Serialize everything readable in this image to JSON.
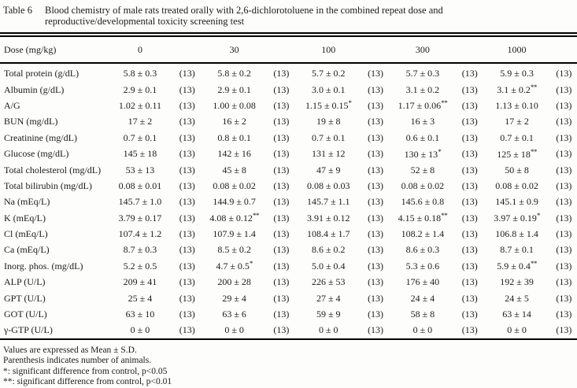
{
  "colors": {
    "text": "#1b1b1b",
    "rule": "#000000",
    "background": "#fdfdfc"
  },
  "title": {
    "label": "Table 6",
    "line1": "Blood chemistry of male rats treated orally with 2,6-dichlorotoluene in the combined repeat dose and",
    "line2": "reproductive/developmental toxicity screening test"
  },
  "table": {
    "dose_label": "Dose (mg/kg)",
    "doses": [
      "0",
      "30",
      "100",
      "300",
      "1000"
    ],
    "rows": [
      {
        "label": "Total protein (g/dL)",
        "cells": [
          {
            "mean": "5.8 ± 0.3",
            "mark": "",
            "n": "(13)"
          },
          {
            "mean": "5.8 ± 0.2",
            "mark": "",
            "n": "(13)"
          },
          {
            "mean": "5.7 ± 0.2",
            "mark": "",
            "n": "(13)"
          },
          {
            "mean": "5.7 ± 0.3",
            "mark": "",
            "n": "(13)"
          },
          {
            "mean": "5.9 ± 0.3",
            "mark": "",
            "n": "(13)"
          }
        ]
      },
      {
        "label": "Albumin (g/dL)",
        "cells": [
          {
            "mean": "2.9 ± 0.1",
            "mark": "",
            "n": "(13)"
          },
          {
            "mean": "2.9 ± 0.1",
            "mark": "",
            "n": "(13)"
          },
          {
            "mean": "3.0 ± 0.1",
            "mark": "",
            "n": "(13)"
          },
          {
            "mean": "3.1 ± 0.2",
            "mark": "",
            "n": "(13)"
          },
          {
            "mean": "3.1 ± 0.2",
            "mark": "**",
            "n": "(13)"
          }
        ]
      },
      {
        "label": "A/G",
        "cells": [
          {
            "mean": "1.02 ± 0.11",
            "mark": "",
            "n": "(13)"
          },
          {
            "mean": "1.00 ± 0.08",
            "mark": "",
            "n": "(13)"
          },
          {
            "mean": "1.15 ± 0.15",
            "mark": "*",
            "n": "(13)"
          },
          {
            "mean": "1.17 ± 0.06",
            "mark": "**",
            "n": "(13)"
          },
          {
            "mean": "1.13 ± 0.10",
            "mark": "",
            "n": "(13)"
          }
        ]
      },
      {
        "label": "BUN (mg/dL)",
        "cells": [
          {
            "mean": "17 ± 2",
            "mark": "",
            "n": "(13)"
          },
          {
            "mean": "16 ± 2",
            "mark": "",
            "n": "(13)"
          },
          {
            "mean": "19 ± 8",
            "mark": "",
            "n": "(13)"
          },
          {
            "mean": "16 ± 3",
            "mark": "",
            "n": "(13)"
          },
          {
            "mean": "17 ± 2",
            "mark": "",
            "n": "(13)"
          }
        ]
      },
      {
        "label": "Creatinine (mg/dL)",
        "cells": [
          {
            "mean": "0.7 ± 0.1",
            "mark": "",
            "n": "(13)"
          },
          {
            "mean": "0.8 ± 0.1",
            "mark": "",
            "n": "(13)"
          },
          {
            "mean": "0.7 ± 0.1",
            "mark": "",
            "n": "(13)"
          },
          {
            "mean": "0.6 ± 0.1",
            "mark": "",
            "n": "(13)"
          },
          {
            "mean": "0.7 ± 0.1",
            "mark": "",
            "n": "(13)"
          }
        ]
      },
      {
        "label": "Glucose (mg/dL)",
        "cells": [
          {
            "mean": "145 ± 18",
            "mark": "",
            "n": "(13)"
          },
          {
            "mean": "142 ± 16",
            "mark": "",
            "n": "(13)"
          },
          {
            "mean": "131 ± 12",
            "mark": "",
            "n": "(13)"
          },
          {
            "mean": "130 ± 13",
            "mark": "*",
            "n": "(13)"
          },
          {
            "mean": "125 ± 18",
            "mark": "**",
            "n": "(13)"
          }
        ]
      },
      {
        "label": "Total cholesterol (mg/dL)",
        "cells": [
          {
            "mean": "53 ± 13",
            "mark": "",
            "n": "(13)"
          },
          {
            "mean": "45 ± 8",
            "mark": "",
            "n": "(13)"
          },
          {
            "mean": "47 ± 9",
            "mark": "",
            "n": "(13)"
          },
          {
            "mean": "52 ± 8",
            "mark": "",
            "n": "(13)"
          },
          {
            "mean": "50 ± 8",
            "mark": "",
            "n": "(13)"
          }
        ]
      },
      {
        "label": "Total bilirubin (mg/dL)",
        "cells": [
          {
            "mean": "0.08 ± 0.01",
            "mark": "",
            "n": "(13)"
          },
          {
            "mean": "0.08 ± 0.02",
            "mark": "",
            "n": "(13)"
          },
          {
            "mean": "0.08 ± 0.03",
            "mark": "",
            "n": "(13)"
          },
          {
            "mean": "0.08 ± 0.02",
            "mark": "",
            "n": "(13)"
          },
          {
            "mean": "0.08 ± 0.02",
            "mark": "",
            "n": "(13)"
          }
        ]
      },
      {
        "label": "Na (mEq/L)",
        "cells": [
          {
            "mean": "145.7 ± 1.0",
            "mark": "",
            "n": "(13)"
          },
          {
            "mean": "144.9 ± 0.7",
            "mark": "",
            "n": "(13)"
          },
          {
            "mean": "145.7 ± 1.1",
            "mark": "",
            "n": "(13)"
          },
          {
            "mean": "145.6 ± 0.8",
            "mark": "",
            "n": "(13)"
          },
          {
            "mean": "145.1 ± 0.9",
            "mark": "",
            "n": "(13)"
          }
        ]
      },
      {
        "label": "K (mEq/L)",
        "cells": [
          {
            "mean": "3.79 ± 0.17",
            "mark": "",
            "n": "(13)"
          },
          {
            "mean": "4.08 ± 0.12",
            "mark": "**",
            "n": "(13)"
          },
          {
            "mean": "3.91 ± 0.12",
            "mark": "",
            "n": "(13)"
          },
          {
            "mean": "4.15 ± 0.18",
            "mark": "**",
            "n": "(13)"
          },
          {
            "mean": "3.97 ± 0.19",
            "mark": "*",
            "n": "(13)"
          }
        ]
      },
      {
        "label": "Cl (mEq/L)",
        "cells": [
          {
            "mean": "107.4 ± 1.2",
            "mark": "",
            "n": "(13)"
          },
          {
            "mean": "107.9 ± 1.4",
            "mark": "",
            "n": "(13)"
          },
          {
            "mean": "108.4 ± 1.7",
            "mark": "",
            "n": "(13)"
          },
          {
            "mean": "108.2 ± 1.4",
            "mark": "",
            "n": "(13)"
          },
          {
            "mean": "106.8 ± 1.4",
            "mark": "",
            "n": "(13)"
          }
        ]
      },
      {
        "label": "Ca (mEq/L)",
        "cells": [
          {
            "mean": "8.7 ± 0.3",
            "mark": "",
            "n": "(13)"
          },
          {
            "mean": "8.5 ± 0.2",
            "mark": "",
            "n": "(13)"
          },
          {
            "mean": "8.6 ± 0.2",
            "mark": "",
            "n": "(13)"
          },
          {
            "mean": "8.6 ± 0.3",
            "mark": "",
            "n": "(13)"
          },
          {
            "mean": "8.7 ± 0.1",
            "mark": "",
            "n": "(13)"
          }
        ]
      },
      {
        "label": "Inorg. phos. (mg/dL)",
        "cells": [
          {
            "mean": "5.2 ± 0.5",
            "mark": "",
            "n": "(13)"
          },
          {
            "mean": "4.7 ± 0.5",
            "mark": "*",
            "n": "(13)"
          },
          {
            "mean": "5.0 ± 0.4",
            "mark": "",
            "n": "(13)"
          },
          {
            "mean": "5.3 ± 0.6",
            "mark": "",
            "n": "(13)"
          },
          {
            "mean": "5.9 ± 0.4",
            "mark": "**",
            "n": "(13)"
          }
        ]
      },
      {
        "label": "ALP (U/L)",
        "cells": [
          {
            "mean": "209 ± 41",
            "mark": "",
            "n": "(13)"
          },
          {
            "mean": "200 ± 28",
            "mark": "",
            "n": "(13)"
          },
          {
            "mean": "226 ± 53",
            "mark": "",
            "n": "(13)"
          },
          {
            "mean": "176 ± 40",
            "mark": "",
            "n": "(13)"
          },
          {
            "mean": "192 ± 39",
            "mark": "",
            "n": "(13)"
          }
        ]
      },
      {
        "label": "GPT (U/L)",
        "cells": [
          {
            "mean": "25 ± 4",
            "mark": "",
            "n": "(13)"
          },
          {
            "mean": "29 ± 4",
            "mark": "",
            "n": "(13)"
          },
          {
            "mean": "27 ± 4",
            "mark": "",
            "n": "(13)"
          },
          {
            "mean": "24 ± 4",
            "mark": "",
            "n": "(13)"
          },
          {
            "mean": "24 ± 5",
            "mark": "",
            "n": "(13)"
          }
        ]
      },
      {
        "label": "GOT (U/L)",
        "cells": [
          {
            "mean": "63 ± 10",
            "mark": "",
            "n": "(13)"
          },
          {
            "mean": "63 ± 6",
            "mark": "",
            "n": "(13)"
          },
          {
            "mean": "59 ± 9",
            "mark": "",
            "n": "(13)"
          },
          {
            "mean": "58 ± 8",
            "mark": "",
            "n": "(13)"
          },
          {
            "mean": "63 ± 14",
            "mark": "",
            "n": "(13)"
          }
        ]
      },
      {
        "label": "γ-GTP (U/L)",
        "cells": [
          {
            "mean": "0 ± 0",
            "mark": "",
            "n": "(13)"
          },
          {
            "mean": "0 ± 0",
            "mark": "",
            "n": "(13)"
          },
          {
            "mean": "0 ± 0",
            "mark": "",
            "n": "(13)"
          },
          {
            "mean": "0 ± 0",
            "mark": "",
            "n": "(13)"
          },
          {
            "mean": "0 ± 0",
            "mark": "",
            "n": "(13)"
          }
        ]
      }
    ]
  },
  "footnotes": [
    "Values are expressed as Mean ± S.D.",
    "Parenthesis indicates number of animals.",
    "*: significant difference from control, p<0.05",
    "**: significant difference from control, p<0.01"
  ]
}
